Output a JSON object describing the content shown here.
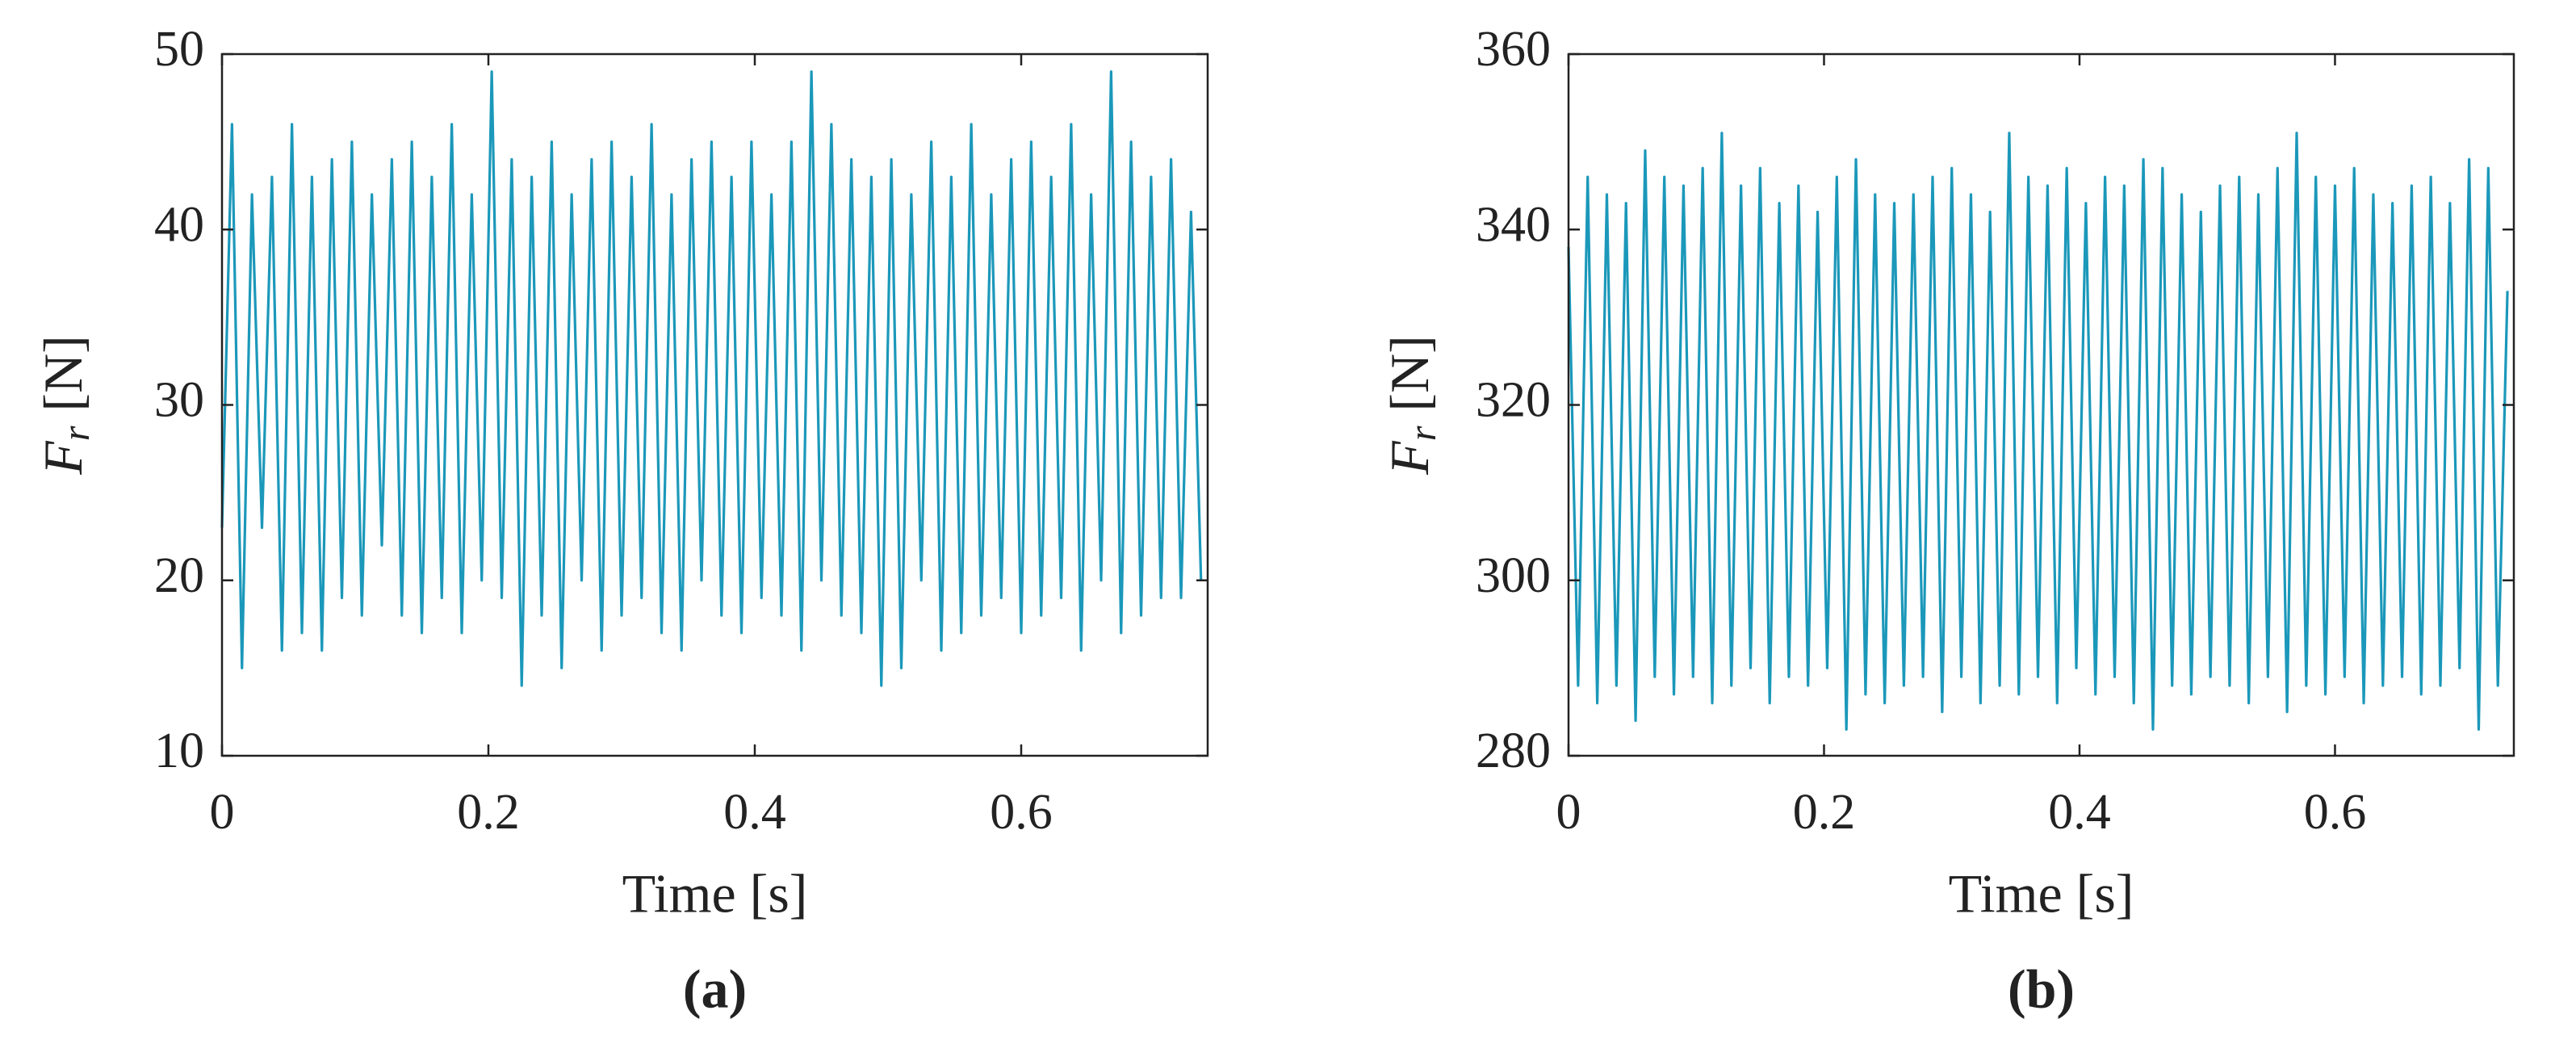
{
  "chart_data": [
    {
      "type": "line",
      "caption": "(a)",
      "xlabel": "Time [s]",
      "ylabel": "F",
      "ylabel_sub": "r",
      "ylabel_unit": "[N]",
      "xlim": [
        0,
        0.74
      ],
      "xticks": [
        0,
        0.2,
        0.4,
        0.6
      ],
      "ylim": [
        10,
        50
      ],
      "yticks": [
        10,
        20,
        30,
        40,
        50
      ],
      "x": [
        0,
        0.0075,
        0.015,
        0.0225,
        0.03,
        0.0375,
        0.045,
        0.0525,
        0.06,
        0.0675,
        0.075,
        0.0825,
        0.09,
        0.0975,
        0.105,
        0.1125,
        0.12,
        0.1275,
        0.135,
        0.1425,
        0.15,
        0.1575,
        0.165,
        0.1725,
        0.18,
        0.1875,
        0.195,
        0.2025,
        0.21,
        0.2175,
        0.225,
        0.2325,
        0.24,
        0.2475,
        0.255,
        0.2625,
        0.27,
        0.2775,
        0.285,
        0.2925,
        0.3,
        0.3075,
        0.315,
        0.3225,
        0.33,
        0.3375,
        0.345,
        0.3525,
        0.36,
        0.3675,
        0.375,
        0.3825,
        0.39,
        0.3975,
        0.405,
        0.4125,
        0.42,
        0.4275,
        0.435,
        0.4425,
        0.45,
        0.4575,
        0.465,
        0.4725,
        0.48,
        0.4875,
        0.495,
        0.5025,
        0.51,
        0.5175,
        0.525,
        0.5325,
        0.54,
        0.5475,
        0.555,
        0.5625,
        0.57,
        0.5775,
        0.585,
        0.5925,
        0.6,
        0.6075,
        0.615,
        0.6225,
        0.63,
        0.6375,
        0.645,
        0.6525,
        0.66,
        0.6675,
        0.675,
        0.6825,
        0.69,
        0.6975,
        0.705,
        0.7125,
        0.72,
        0.7275,
        0.735
      ],
      "series": [
        {
          "name": "Fr",
          "color": "#1b98ba",
          "values": [
            23,
            46,
            15,
            42,
            23,
            43,
            16,
            46,
            17,
            43,
            16,
            44,
            19,
            45,
            18,
            42,
            22,
            44,
            18,
            45,
            17,
            43,
            19,
            46,
            17,
            42,
            20,
            49,
            19,
            44,
            14,
            43,
            18,
            45,
            15,
            42,
            20,
            44,
            16,
            45,
            18,
            43,
            19,
            46,
            17,
            42,
            16,
            44,
            20,
            45,
            18,
            43,
            17,
            45,
            19,
            42,
            18,
            45,
            16,
            49,
            20,
            46,
            18,
            44,
            17,
            43,
            14,
            44,
            15,
            42,
            20,
            45,
            16,
            43,
            17,
            46,
            18,
            42,
            19,
            44,
            17,
            45,
            18,
            43,
            19,
            46,
            16,
            42,
            20,
            49,
            17,
            45,
            18,
            43,
            19,
            44,
            19,
            41,
            20
          ]
        }
      ]
    },
    {
      "type": "line",
      "caption": "(b)",
      "xlabel": "Time [s]",
      "ylabel": "F",
      "ylabel_sub": "r",
      "ylabel_unit": "[N]",
      "xlim": [
        0,
        0.74
      ],
      "xticks": [
        0,
        0.2,
        0.4,
        0.6
      ],
      "ylim": [
        280,
        360
      ],
      "yticks": [
        280,
        300,
        320,
        340,
        360
      ],
      "x": [
        0,
        0.0075,
        0.015,
        0.0225,
        0.03,
        0.0375,
        0.045,
        0.0525,
        0.06,
        0.0675,
        0.075,
        0.0825,
        0.09,
        0.0975,
        0.105,
        0.1125,
        0.12,
        0.1275,
        0.135,
        0.1425,
        0.15,
        0.1575,
        0.165,
        0.1725,
        0.18,
        0.1875,
        0.195,
        0.2025,
        0.21,
        0.2175,
        0.225,
        0.2325,
        0.24,
        0.2475,
        0.255,
        0.2625,
        0.27,
        0.2775,
        0.285,
        0.2925,
        0.3,
        0.3075,
        0.315,
        0.3225,
        0.33,
        0.3375,
        0.345,
        0.3525,
        0.36,
        0.3675,
        0.375,
        0.3825,
        0.39,
        0.3975,
        0.405,
        0.4125,
        0.42,
        0.4275,
        0.435,
        0.4425,
        0.45,
        0.4575,
        0.465,
        0.4725,
        0.48,
        0.4875,
        0.495,
        0.5025,
        0.51,
        0.5175,
        0.525,
        0.5325,
        0.54,
        0.5475,
        0.555,
        0.5625,
        0.57,
        0.5775,
        0.585,
        0.5925,
        0.6,
        0.6075,
        0.615,
        0.6225,
        0.63,
        0.6375,
        0.645,
        0.6525,
        0.66,
        0.6675,
        0.675,
        0.6825,
        0.69,
        0.6975,
        0.705,
        0.7125,
        0.72,
        0.7275,
        0.735
      ],
      "series": [
        {
          "name": "Fr",
          "color": "#1b98ba",
          "values": [
            338,
            288,
            346,
            286,
            344,
            288,
            343,
            284,
            349,
            289,
            346,
            287,
            345,
            289,
            347,
            286,
            351,
            288,
            345,
            290,
            347,
            286,
            343,
            289,
            345,
            288,
            342,
            290,
            346,
            283,
            348,
            287,
            344,
            286,
            343,
            288,
            344,
            289,
            346,
            285,
            347,
            289,
            344,
            286,
            342,
            288,
            351,
            287,
            346,
            289,
            345,
            286,
            347,
            290,
            343,
            287,
            346,
            289,
            345,
            286,
            348,
            283,
            347,
            288,
            344,
            287,
            342,
            289,
            345,
            288,
            346,
            286,
            344,
            289,
            347,
            285,
            351,
            288,
            346,
            287,
            345,
            289,
            347,
            286,
            344,
            288,
            343,
            289,
            345,
            287,
            346,
            288,
            343,
            290,
            348,
            283,
            347,
            288,
            333
          ]
        }
      ]
    }
  ]
}
